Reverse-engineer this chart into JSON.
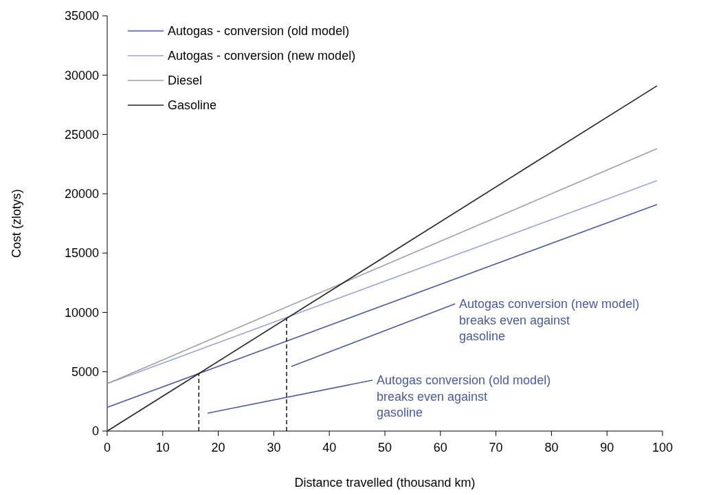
{
  "chart_data": {
    "type": "line",
    "xlabel": "Distance travelled (thousand km)",
    "ylabel": "Cost (zlotys)",
    "xlim": [
      0,
      100
    ],
    "ylim": [
      0,
      35000
    ],
    "xticks": [
      0,
      10,
      20,
      30,
      40,
      50,
      60,
      70,
      80,
      90,
      100
    ],
    "yticks": [
      0,
      5000,
      10000,
      15000,
      20000,
      25000,
      30000,
      35000
    ],
    "x": [
      0,
      99
    ],
    "legend": "top left",
    "grid": false,
    "line_style": "solid",
    "series": [
      {
        "name": "Autogas - conversion (old model)",
        "color": "#4a5aa0",
        "values": [
          2000,
          19100
        ]
      },
      {
        "name": "Autogas - conversion (new model)",
        "color": "#9aa6d8",
        "values": [
          4000,
          21100
        ]
      },
      {
        "name": "Diesel",
        "color": "#a0a0a0",
        "values": [
          4000,
          23800
        ]
      },
      {
        "name": "Gasoline",
        "color": "#222222",
        "values": [
          0,
          29100
        ]
      }
    ],
    "ref_lines": [
      {
        "axis": "x",
        "value": 16.5,
        "line_style": "dashed",
        "color": "#000000"
      },
      {
        "axis": "x",
        "value": 32.3,
        "line_style": "dashed",
        "color": "#000000"
      }
    ],
    "annotations": [
      "Autogas conversion (new model) breaks even against gasoline",
      "Autogas conversion (old model) breaks even against gasoline"
    ]
  }
}
